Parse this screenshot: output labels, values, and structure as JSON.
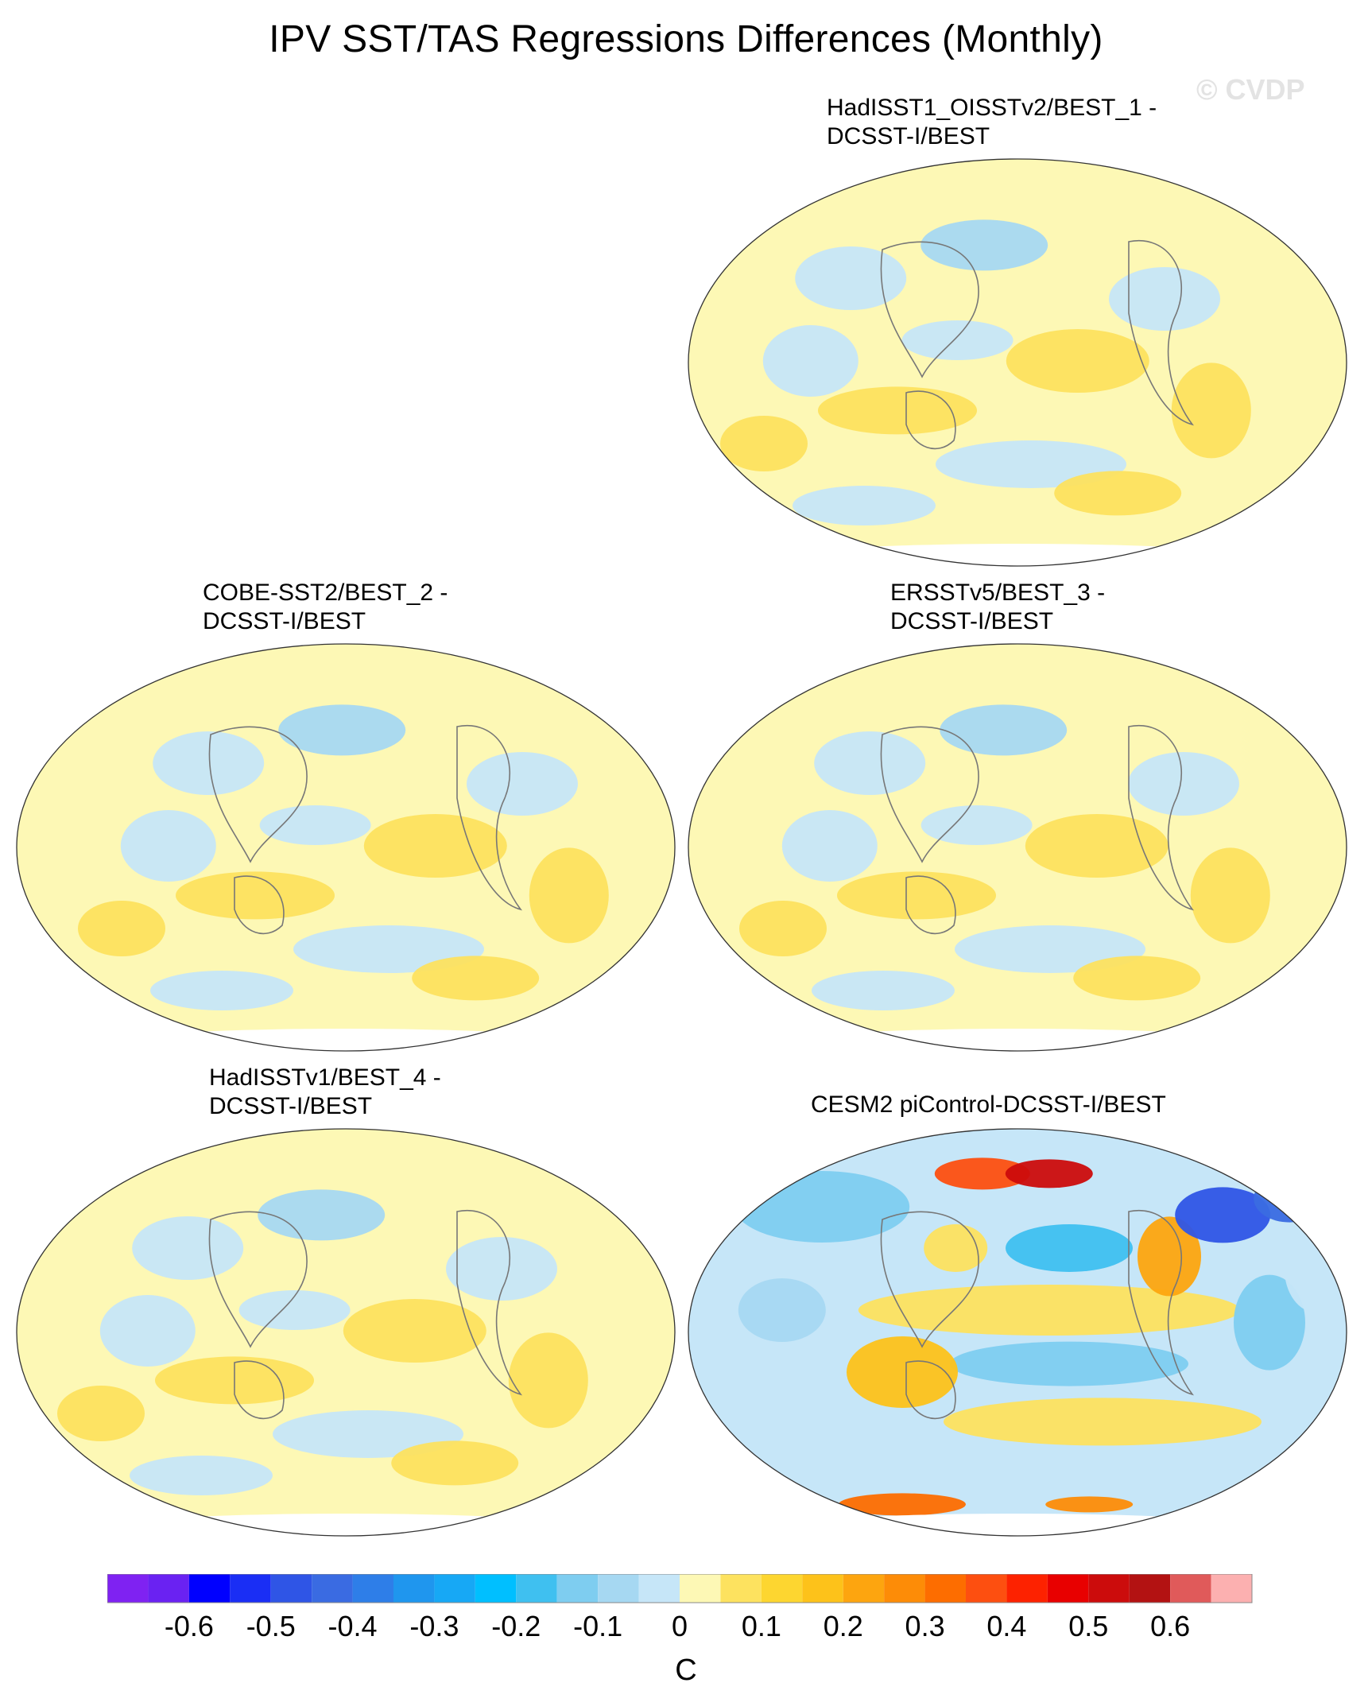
{
  "title": "IPV SST/TAS Regressions Differences (Monthly)",
  "watermark": "© CVDP",
  "panels": [
    {
      "id": "p1",
      "title_line1": "HadISST1_OISSTv2/BEST_1 -",
      "title_line2": "DCSST-I/BEST",
      "intensity": "weak"
    },
    {
      "id": "p2",
      "title_line1": "COBE-SST2/BEST_2 -",
      "title_line2": "DCSST-I/BEST",
      "intensity": "weak"
    },
    {
      "id": "p3",
      "title_line1": "ERSSTv5/BEST_3 -",
      "title_line2": "DCSST-I/BEST",
      "intensity": "weak"
    },
    {
      "id": "p4",
      "title_line1": "HadISSTv1/BEST_4 -",
      "title_line2": "DCSST-I/BEST",
      "intensity": "weak"
    },
    {
      "id": "p5",
      "title_line1": "CESM2 piControl-DCSST-I/BEST",
      "title_line2": "",
      "intensity": "strong"
    }
  ],
  "colorbar": {
    "units": "C",
    "colors": [
      "#7f22f2",
      "#6a22f2",
      "#0000ff",
      "#1a2ef5",
      "#2f55e6",
      "#3a6be2",
      "#2e7ee8",
      "#1f96ee",
      "#17a8f5",
      "#00bfff",
      "#3fc0f0",
      "#7ecdf0",
      "#a6d8f2",
      "#c6e6f8",
      "#fdf8b5",
      "#fde25f",
      "#fdd630",
      "#fdc21a",
      "#fda50f",
      "#fd8c07",
      "#fd6d00",
      "#fd4f10",
      "#fd2200",
      "#e80000",
      "#cc0c0c",
      "#b31212",
      "#e05a5a",
      "#fcb0b0"
    ],
    "tick_labels": [
      "-0.6",
      "-0.5",
      "-0.4",
      "-0.3",
      "-0.2",
      "-0.1",
      "0",
      "0.1",
      "0.2",
      "0.3",
      "0.4",
      "0.5",
      "0.6"
    ]
  }
}
